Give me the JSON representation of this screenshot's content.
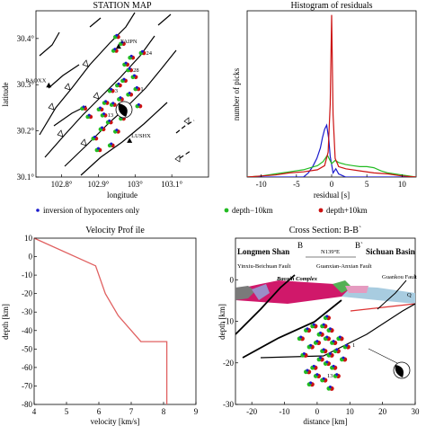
{
  "colors": {
    "blue": "#1a1acc",
    "red": "#cc1111",
    "green": "#22bb22",
    "vel": "#e06060"
  },
  "legend": {
    "items": [
      {
        "label": "inversion of hypocenters only",
        "color": "#1a1acc"
      },
      {
        "label": "depth−10km",
        "color": "#22bb22"
      },
      {
        "label": "depth+10km",
        "color": "#cc1111"
      }
    ]
  },
  "chart_data": [
    {
      "id": "station-map",
      "type": "scatter",
      "title": "STATION MAP",
      "xlabel": "longitude",
      "ylabel": "latitude",
      "xlim": [
        102.73,
        103.2
      ],
      "ylim": [
        30.1,
        30.46
      ],
      "xticks": [
        102.8,
        102.9,
        103.0,
        103.1
      ],
      "xticklabels": [
        "102.8°",
        "102.9°",
        "103°",
        "103.1°"
      ],
      "yticks": [
        30.1,
        30.2,
        30.3,
        30.4
      ],
      "yticklabels": [
        "30.1°",
        "30.2°",
        "30.3°",
        "30.4°"
      ],
      "stations": [
        {
          "name": "TAIPN",
          "lon": 102.955,
          "lat": 30.382
        },
        {
          "name": "BAOXX",
          "lon": 102.765,
          "lat": 30.298
        },
        {
          "name": "LUSHX",
          "lon": 102.985,
          "lat": 30.178
        }
      ],
      "events": [
        {
          "label": "24",
          "lon": 103.02,
          "lat": 30.37
        },
        {
          "label": "28",
          "lon": 102.985,
          "lat": 30.333
        },
        {
          "label": "1",
          "lon": 103.005,
          "lat": 30.292
        },
        {
          "label": "3",
          "lon": 102.935,
          "lat": 30.288
        },
        {
          "label": "13",
          "lon": 102.915,
          "lat": 30.235
        },
        {
          "label": "",
          "lon": 102.95,
          "lat": 30.405
        },
        {
          "label": "",
          "lon": 102.965,
          "lat": 30.39
        },
        {
          "label": "",
          "lon": 102.945,
          "lat": 30.375
        },
        {
          "label": "",
          "lon": 102.99,
          "lat": 30.36
        },
        {
          "label": "",
          "lon": 102.975,
          "lat": 30.345
        },
        {
          "label": "",
          "lon": 102.998,
          "lat": 30.318
        },
        {
          "label": "",
          "lon": 102.97,
          "lat": 30.31
        },
        {
          "label": "",
          "lon": 102.955,
          "lat": 30.3
        },
        {
          "label": "",
          "lon": 102.985,
          "lat": 30.28
        },
        {
          "label": "",
          "lon": 102.96,
          "lat": 30.27
        },
        {
          "label": "",
          "lon": 102.94,
          "lat": 30.258
        },
        {
          "label": "",
          "lon": 102.92,
          "lat": 30.262
        },
        {
          "label": "",
          "lon": 102.905,
          "lat": 30.248
        },
        {
          "label": "",
          "lon": 102.93,
          "lat": 30.22
        },
        {
          "label": "",
          "lon": 102.91,
          "lat": 30.205
        },
        {
          "label": "",
          "lon": 102.95,
          "lat": 30.2
        },
        {
          "label": "",
          "lon": 102.89,
          "lat": 30.185
        },
        {
          "label": "",
          "lon": 102.935,
          "lat": 30.17
        },
        {
          "label": "",
          "lon": 102.9,
          "lat": 30.16
        },
        {
          "label": "",
          "lon": 102.86,
          "lat": 30.25
        },
        {
          "label": "",
          "lon": 102.875,
          "lat": 30.232
        },
        {
          "label": "",
          "lon": 102.965,
          "lat": 30.228
        },
        {
          "label": "",
          "lon": 103.01,
          "lat": 30.255
        }
      ]
    },
    {
      "id": "histogram",
      "type": "line",
      "title": "Histogram of residuals",
      "xlabel": "residual [s]",
      "ylabel": "number of picks",
      "xlim": [
        -12,
        12
      ],
      "ylim": [
        0,
        80
      ],
      "xticks": [
        -10,
        -5,
        0,
        5,
        10
      ],
      "series": [
        {
          "name": "inversion of hypocenters only",
          "color": "#1a1acc",
          "x": [
            -12,
            -4,
            -3.3,
            -2.7,
            -2.1,
            -1.6,
            -1.3,
            -1.0,
            -0.7,
            -0.4,
            -0.2,
            0.2,
            0.6,
            1.0,
            2,
            12
          ],
          "y": [
            0,
            0,
            2,
            5,
            9,
            14,
            19,
            23,
            25,
            18,
            10,
            2,
            4,
            1.5,
            0,
            0
          ]
        },
        {
          "name": "depth−10km",
          "color": "#22bb22",
          "x": [
            -12,
            -10,
            -8,
            -6,
            -4,
            -3,
            -2,
            -1.2,
            -0.6,
            0,
            0.5,
            1,
            2,
            3,
            4,
            5,
            6,
            7,
            8,
            10,
            12
          ],
          "y": [
            0,
            0.5,
            1.5,
            2.5,
            3.5,
            4.5,
            5.5,
            7.5,
            10.5,
            6.5,
            8,
            7,
            6,
            5.5,
            5,
            5,
            4.5,
            3,
            2,
            1,
            0
          ]
        },
        {
          "name": "depth+10km",
          "color": "#cc1111",
          "x": [
            -12,
            -10,
            -8,
            -6,
            -4,
            -2,
            -1,
            -0.5,
            -0.2,
            0,
            0.2,
            0.5,
            1,
            2,
            4,
            6,
            8,
            10,
            12
          ],
          "y": [
            0,
            0.5,
            1,
            2,
            2.5,
            3.5,
            5.5,
            12,
            35,
            78,
            30,
            9,
            5,
            4,
            3,
            2,
            1.5,
            0.5,
            0
          ]
        }
      ]
    },
    {
      "id": "velocity-profile",
      "type": "line",
      "title": "Velocity Prof ile",
      "xlabel": "velocity [km/s]",
      "ylabel": "depth [km]",
      "xlim": [
        4,
        9
      ],
      "ylim": [
        -80,
        10
      ],
      "xticks": [
        4,
        5,
        6,
        7,
        8,
        9
      ],
      "yticks": [
        10,
        0,
        -10,
        -20,
        -30,
        -40,
        -50,
        -60,
        -70,
        -80
      ],
      "series": [
        {
          "name": "",
          "color": "#e06060",
          "x": [
            4.0,
            5.9,
            6.2,
            6.6,
            7.3,
            8.1,
            8.1
          ],
          "y": [
            10,
            -5,
            -20,
            -32,
            -46,
            -46,
            -80
          ]
        }
      ]
    },
    {
      "id": "cross-section",
      "type": "scatter",
      "title": "Cross Section: B-B`",
      "xlabel": "distance [km]",
      "ylabel": "depth [km]",
      "xlim": [
        -25,
        30
      ],
      "ylim": [
        -30,
        10
      ],
      "xticks": [
        -20,
        -10,
        0,
        10,
        20,
        30
      ],
      "yticks": [
        0,
        -10,
        -20,
        -30
      ],
      "annotations": {
        "left_label": "Longmen Shan",
        "right_label": "Sichuan Basin",
        "point_left": "B",
        "point_right": "B`",
        "azimuth": "N139°E",
        "fault1": "Yinxiu-Beichuan Fault",
        "fault2": "Guanxian-Anxian Fault",
        "fault3": "Guankou Fault",
        "complex": "Baoxin Complex",
        "num1": "1",
        "num13": "13",
        "q": "Q"
      },
      "events": [
        {
          "x": -3,
          "y": -12
        },
        {
          "x": -1,
          "y": -11
        },
        {
          "x": 1,
          "y": -13
        },
        {
          "x": 2,
          "y": -11
        },
        {
          "x": 3,
          "y": -14
        },
        {
          "x": 4,
          "y": -12
        },
        {
          "x": 5,
          "y": -15
        },
        {
          "x": 0,
          "y": -15
        },
        {
          "x": -2,
          "y": -16
        },
        {
          "x": 2,
          "y": -17
        },
        {
          "x": 4,
          "y": -18
        },
        {
          "x": 6,
          "y": -17
        },
        {
          "x": -4,
          "y": -18
        },
        {
          "x": 1,
          "y": -19
        },
        {
          "x": 3,
          "y": -20
        },
        {
          "x": -1,
          "y": -21
        },
        {
          "x": 5,
          "y": -21
        },
        {
          "x": 0,
          "y": -23
        },
        {
          "x": 2,
          "y": -24
        },
        {
          "x": -3,
          "y": -22
        },
        {
          "x": 7,
          "y": -14
        },
        {
          "x": 8,
          "y": -19
        },
        {
          "x": -5,
          "y": -14
        },
        {
          "x": 6,
          "y": -23
        },
        {
          "x": 3,
          "y": -9
        },
        {
          "x": 9,
          "y": -16
        },
        {
          "x": -2,
          "y": -25
        },
        {
          "x": 4,
          "y": -26
        }
      ]
    }
  ]
}
